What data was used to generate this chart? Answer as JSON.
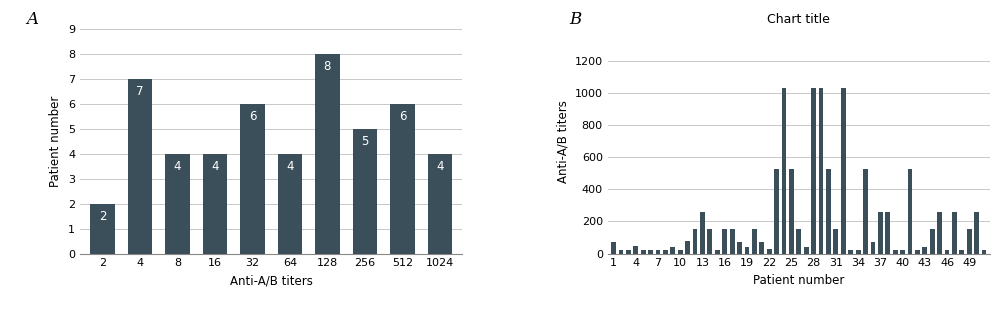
{
  "chart_a": {
    "label": "A",
    "x_labels": [
      "2",
      "4",
      "8",
      "16",
      "32",
      "64",
      "128",
      "256",
      "512",
      "1024"
    ],
    "values": [
      2,
      7,
      4,
      4,
      6,
      4,
      8,
      5,
      6,
      4
    ],
    "xlabel": "Anti-A/B titers",
    "ylabel": "Patient number",
    "ylim": [
      0,
      9
    ],
    "yticks": [
      0,
      1,
      2,
      3,
      4,
      5,
      6,
      7,
      8,
      9
    ]
  },
  "chart_b": {
    "label": "B",
    "title": "Chart title",
    "patient_numbers": [
      1,
      2,
      3,
      4,
      5,
      6,
      7,
      8,
      9,
      10,
      11,
      12,
      13,
      14,
      15,
      16,
      17,
      18,
      19,
      20,
      21,
      22,
      23,
      24,
      25,
      26,
      27,
      28,
      29,
      30,
      31,
      32,
      33,
      34,
      35,
      36,
      37,
      38,
      39,
      40,
      41,
      42,
      43,
      44,
      45,
      46,
      47,
      48,
      49,
      50,
      51
    ],
    "values": [
      75,
      20,
      20,
      50,
      20,
      20,
      20,
      20,
      40,
      20,
      80,
      150,
      260,
      150,
      20,
      150,
      150,
      75,
      40,
      150,
      75,
      30,
      525,
      1030,
      525,
      150,
      40,
      1030,
      1030,
      525,
      150,
      1030,
      20,
      20,
      525,
      75,
      260,
      260,
      20,
      20,
      525,
      20,
      40,
      150,
      260,
      20,
      260,
      20,
      150,
      260,
      20
    ],
    "xlabel": "Patient number",
    "ylabel": "Anti-A/B titers",
    "ylim": [
      0,
      1400
    ],
    "yticks": [
      0,
      200,
      400,
      600,
      800,
      1000,
      1200
    ],
    "x_tick_labels": [
      "1",
      "4",
      "7",
      "10",
      "13",
      "16",
      "19",
      "22",
      "25",
      "28",
      "31",
      "34",
      "37",
      "40",
      "43",
      "46",
      "49"
    ]
  },
  "bar_color": "#3b4f5b",
  "bg_color": "#ffffff",
  "grid_color": "#c8c8c8",
  "label_fontsize": 8.5,
  "tick_fontsize": 8,
  "panel_label_fontsize": 12,
  "title_fontsize": 9
}
